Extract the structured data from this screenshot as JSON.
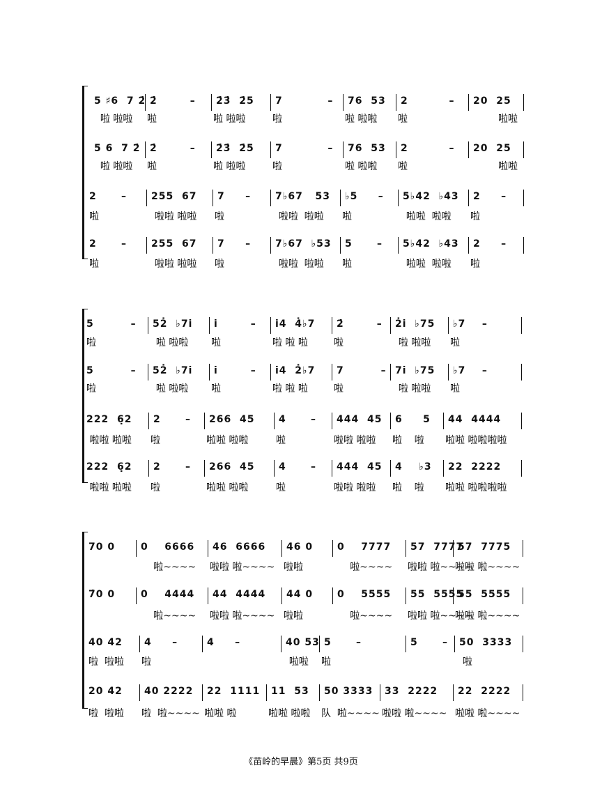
{
  "page_footer": "《苗岭的早晨》第5页  共9页",
  "systems": [
    {
      "parts": [
        {
          "measures": [
            "5 ♯6  7 2̇",
            "2̇        –",
            "2̇3̇  2̇5",
            "7           –",
            "76  53",
            "2          –",
            "20  25"
          ],
          "lyrics": [
            "  啦 啦啦",
            "啦",
            "啦 啦啦",
            "啦",
            "啦 啦啦",
            "啦",
            "         啦啦"
          ]
        },
        {
          "measures": [
            "5 6  7 2̇",
            "2̇        –",
            "2̇3̇  2̇5",
            "7           –",
            "76  53",
            "2          –",
            "20  25"
          ],
          "lyrics": [
            "  啦 啦啦",
            "啦",
            "啦 啦啦",
            "啦",
            "啦 啦啦",
            "啦",
            "         啦啦"
          ]
        },
        {
          "measures": [
            "2      –",
            "255  67",
            "7     –",
            "7♭67   53",
            "♭5     –",
            "5♭42  ♭43",
            "2     –"
          ],
          "lyrics": [
            "啦",
            "  啦啦 啦啦",
            "啦",
            "  啦啦  啦啦",
            "啦",
            "  啦啦  啦啦",
            "啦"
          ]
        },
        {
          "measures": [
            "2      –",
            "255  67",
            "7     –",
            "7♭67  ♭53",
            "5      –",
            "5♭42  ♭43",
            "2     –"
          ],
          "lyrics": [
            "啦",
            "  啦啦 啦啦",
            "啦",
            "  啦啦  啦啦",
            "啦",
            "  啦啦  啦啦",
            "啦"
          ]
        }
      ]
    },
    {
      "parts": [
        {
          "measures": [
            "5         –",
            "52̇  ♭7i̇",
            "i̇        –",
            "i̇4  4̇♭7",
            "2̇        –",
            "2̇i̇  ♭75",
            "♭7    –"
          ],
          "lyrics": [
            "啦",
            "  啦 啦啦",
            "啦",
            "啦 啦 啦",
            "啦",
            "  啦 啦啦",
            "啦"
          ]
        },
        {
          "measures": [
            "5         –",
            "52̇  ♭7i̇",
            "i̇        –",
            "i̇4  2̇♭7",
            "7         –",
            "7i̇  ♭75",
            "♭7    –"
          ],
          "lyrics": [
            "啦",
            "  啦 啦啦",
            "啦",
            "啦 啦 啦",
            "啦",
            "  啦 啦啦",
            "啦"
          ]
        },
        {
          "measures": [
            "222  6̣2",
            "2      –",
            "266  45",
            "4      –",
            "444  45",
            "6     5",
            "44  4444"
          ],
          "lyrics": [
            " 啦啦 啦啦",
            "啦",
            "啦啦 啦啦",
            "啦",
            "啦啦 啦啦",
            "啦    啦",
            "啦啦 啦啦啦啦"
          ]
        },
        {
          "measures": [
            "222  6̣2",
            "2      –",
            "266  45",
            "4      –",
            "444  45",
            "4    ♭3",
            "22  2222"
          ],
          "lyrics": [
            " 啦啦 啦啦",
            "啦",
            "啦啦 啦啦",
            "啦",
            "啦啦 啦啦",
            "啦    啦",
            "啦啦 啦啦啦啦"
          ]
        }
      ]
    },
    {
      "parts": [
        {
          "measures": [
            "70 0",
            "0    6666",
            "46  6666",
            "46 0",
            "0    7777",
            "57  7777",
            "57  7775"
          ],
          "lyrics": [
            "",
            "     啦~~~~",
            "啦啦 啦~~~~",
            "啦啦",
            "     啦~~~~",
            "啦啦 啦~~~~",
            "啦啦 啦~~~~"
          ]
        },
        {
          "measures": [
            "7̇0 0",
            "0    4444",
            "44  4444",
            "44 0",
            "0    5555",
            "55  5555",
            "55  5555"
          ],
          "lyrics": [
            "",
            "     啦~~~~",
            "啦啦 啦~~~~",
            "啦啦",
            "     啦~~~~",
            "啦啦 啦~~~~",
            "啦啦 啦~~~~"
          ]
        },
        {
          "measures": [
            "40 42",
            "4     –",
            "4     –",
            "40 53",
            "5      –",
            "5      –",
            "50  3333"
          ],
          "lyrics": [
            "啦  啦啦",
            "啦",
            "",
            "  啦啦",
            "啦",
            "",
            "  啦"
          ]
        },
        {
          "measures": [
            "20 42",
            "40 2222",
            "22  1111",
            "11  53",
            "50 3333",
            "33  2222",
            "22  2222"
          ],
          "lyrics": [
            "啦  啦啦",
            "啦  啦~~~~",
            "啦啦 啦",
            "啦啦 啦啦",
            "队  啦~~~~",
            "啦啦 啦~~~~",
            "啦啦 啦~~~~"
          ]
        }
      ]
    }
  ]
}
